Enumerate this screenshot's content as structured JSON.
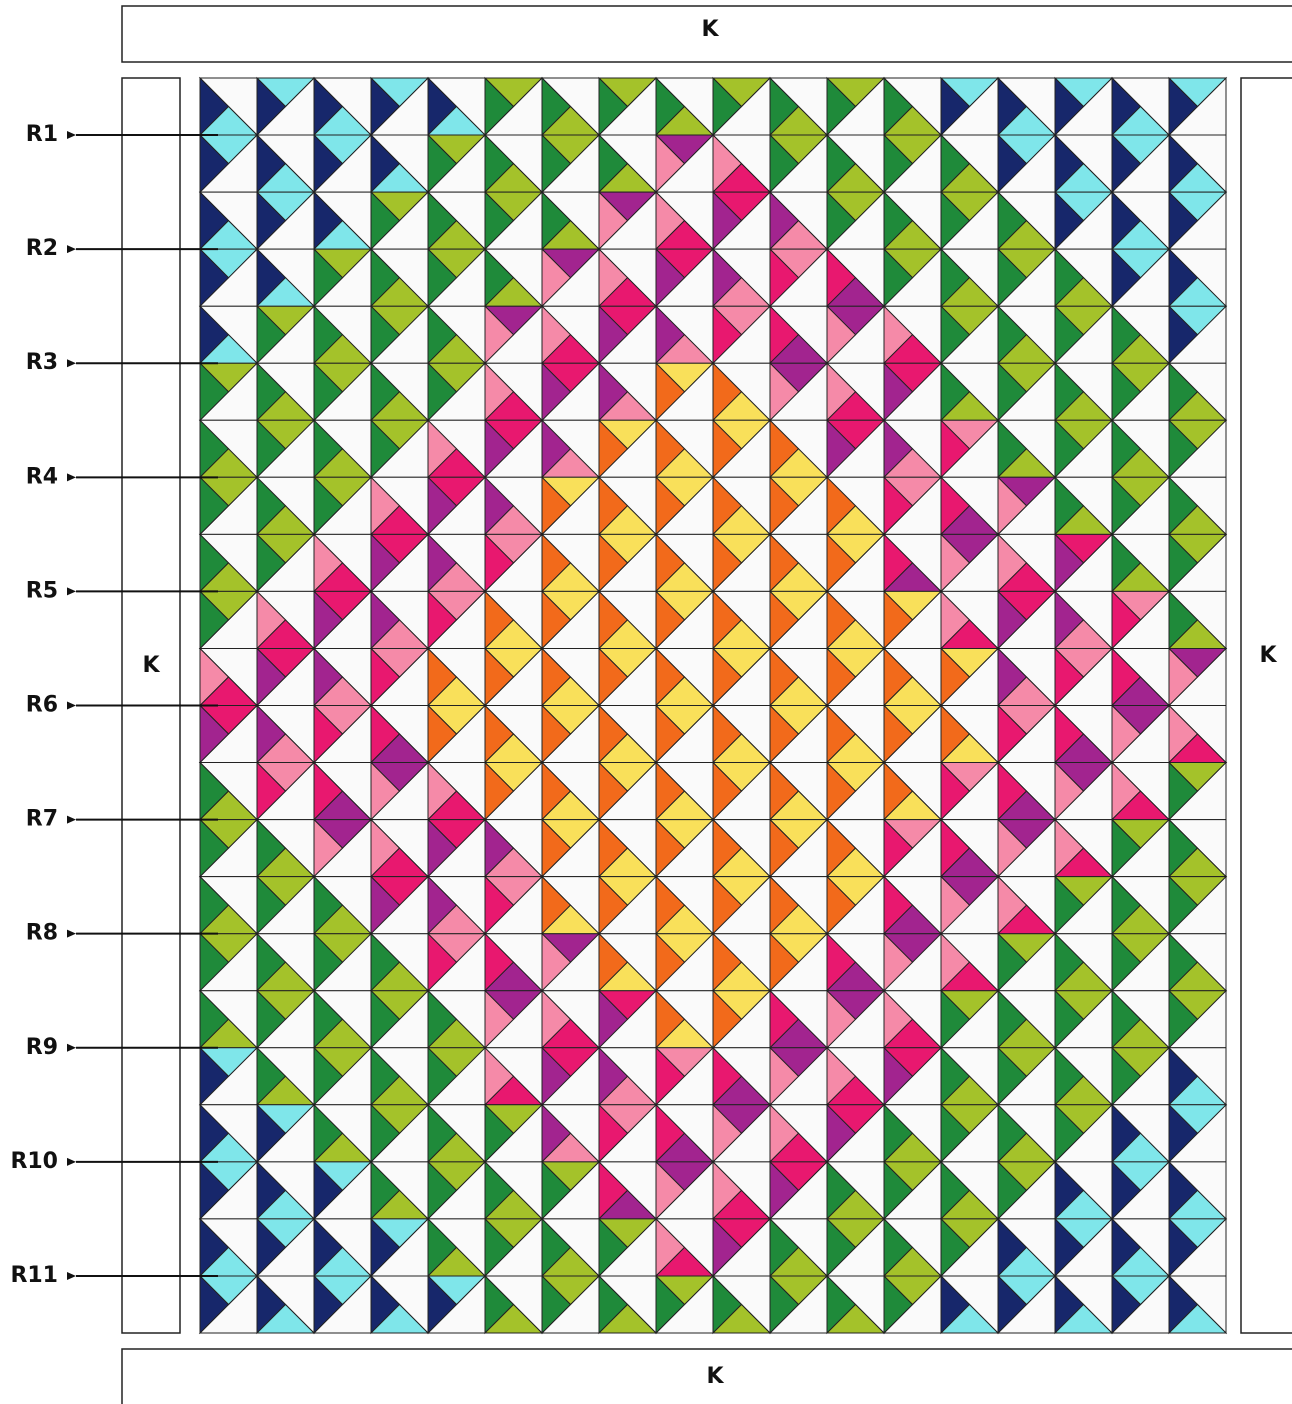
{
  "borders": {
    "top": "K",
    "left": "K",
    "right": "K",
    "bottom": "K"
  },
  "rows": [
    "R1",
    "R2",
    "R3",
    "R4",
    "R5",
    "R6",
    "R7",
    "R8",
    "R9",
    "R10",
    "R11"
  ]
}
